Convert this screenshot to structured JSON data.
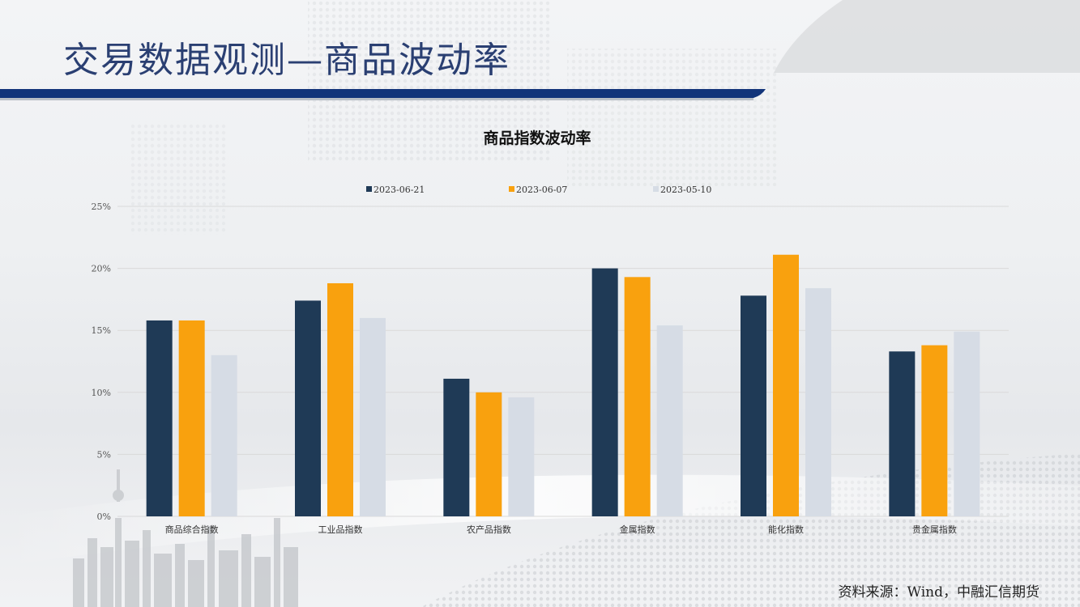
{
  "page": {
    "title": "交易数据观测—商品波动率",
    "source": "资料来源：Wind，中融汇信期货"
  },
  "colors": {
    "title": "#2a3f72",
    "banner": "#12347a",
    "series": [
      "#1f3a56",
      "#f9a10e",
      "#d6dce5"
    ]
  },
  "chart_data": {
    "type": "bar",
    "title": "商品指数波动率",
    "categories": [
      "商品综合指数",
      "工业品指数",
      "农产品指数",
      "金属指数",
      "能化指数",
      "贵金属指数"
    ],
    "series": [
      {
        "name": "2023-06-21",
        "values": [
          15.8,
          17.4,
          11.1,
          20.0,
          17.8,
          13.3
        ]
      },
      {
        "name": "2023-06-07",
        "values": [
          15.8,
          18.8,
          10.0,
          19.3,
          21.1,
          13.8
        ]
      },
      {
        "name": "2023-05-10",
        "values": [
          13.0,
          16.0,
          9.6,
          15.4,
          18.4,
          14.9
        ]
      }
    ],
    "y_ticks": [
      "0%",
      "5%",
      "10%",
      "15%",
      "20%",
      "25%"
    ],
    "ylim": [
      0,
      25
    ],
    "grid": true,
    "legend_position": "top"
  }
}
